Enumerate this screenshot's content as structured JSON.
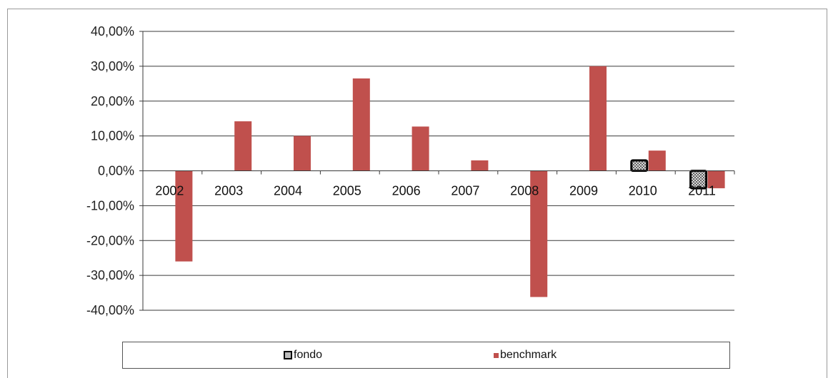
{
  "chart_data": {
    "type": "bar",
    "categories": [
      "2002",
      "2003",
      "2004",
      "2005",
      "2006",
      "2007",
      "2008",
      "2009",
      "2010",
      "2011"
    ],
    "series": [
      {
        "name": "fondo",
        "values": [
          null,
          null,
          null,
          null,
          null,
          null,
          null,
          null,
          3.0,
          -5.0
        ]
      },
      {
        "name": "benchmark",
        "values": [
          -26.0,
          14.2,
          10.0,
          26.5,
          12.7,
          3.0,
          -36.2,
          30.0,
          5.8,
          -5.0
        ]
      }
    ],
    "yticks": [
      "40,00%",
      "30,00%",
      "20,00%",
      "10,00%",
      "0,00%",
      "-10,00%",
      "-20,00%",
      "-30,00%",
      "-40,00%"
    ],
    "ylim": [
      -40,
      40
    ],
    "grid": true,
    "legend_position": "bottom",
    "colors": {
      "fondo": "#b8b8b8",
      "benchmark": "#c0504d"
    }
  }
}
